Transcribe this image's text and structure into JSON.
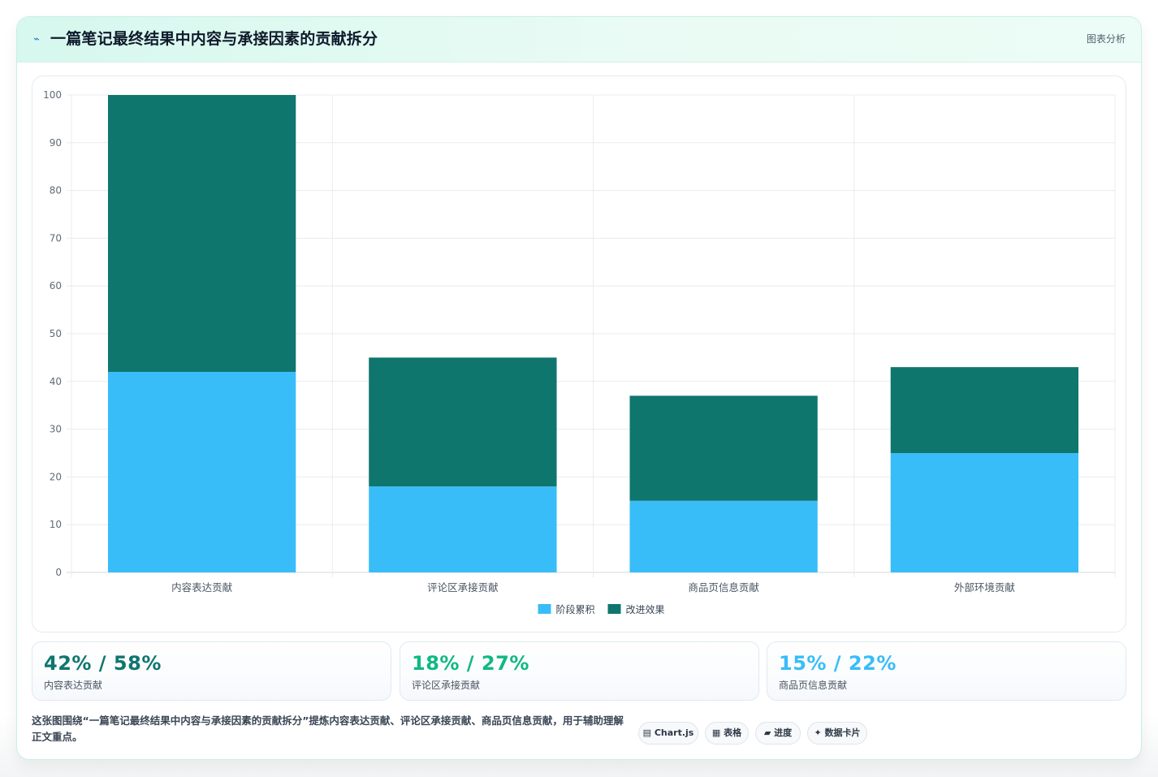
{
  "header": {
    "icon": "⌁",
    "icon_name": "lightning-icon",
    "title": "一篇笔记最终结果中内容与承接因素的贡献拆分",
    "tag": "图表分析"
  },
  "chart_data": {
    "type": "bar",
    "stacked": true,
    "categories": [
      "内容表达贡献",
      "评论区承接贡献",
      "商品页信息贡献",
      "外部环境贡献"
    ],
    "series": [
      {
        "name": "阶段累积",
        "color": "#38bdf8",
        "values": [
          42,
          18,
          15,
          25
        ]
      },
      {
        "name": "改进效果",
        "color": "#0f766e",
        "values": [
          58,
          27,
          22,
          18
        ]
      }
    ],
    "ylim": [
      0,
      100
    ],
    "yticks": [
      0,
      10,
      20,
      30,
      40,
      50,
      60,
      70,
      80,
      90,
      100
    ],
    "grid": true,
    "legend_position": "bottom"
  },
  "stats": [
    {
      "value": "42% / 58%",
      "label": "内容表达贡献",
      "color": "#0f766e"
    },
    {
      "value": "18% / 27%",
      "label": "评论区承接贡献",
      "color": "#10b981"
    },
    {
      "value": "15% / 22%",
      "label": "商品页信息贡献",
      "color": "#38bdf8"
    }
  ],
  "description": "这张图围绕“一篇笔记最终结果中内容与承接因素的贡献拆分”提炼内容表达贡献、评论区承接贡献、商品页信息贡献，用于辅助理解正文重点。",
  "chips": [
    "▤ Chart.js",
    "▦ 表格",
    "▰ 进度",
    "✦ 数据卡片"
  ]
}
